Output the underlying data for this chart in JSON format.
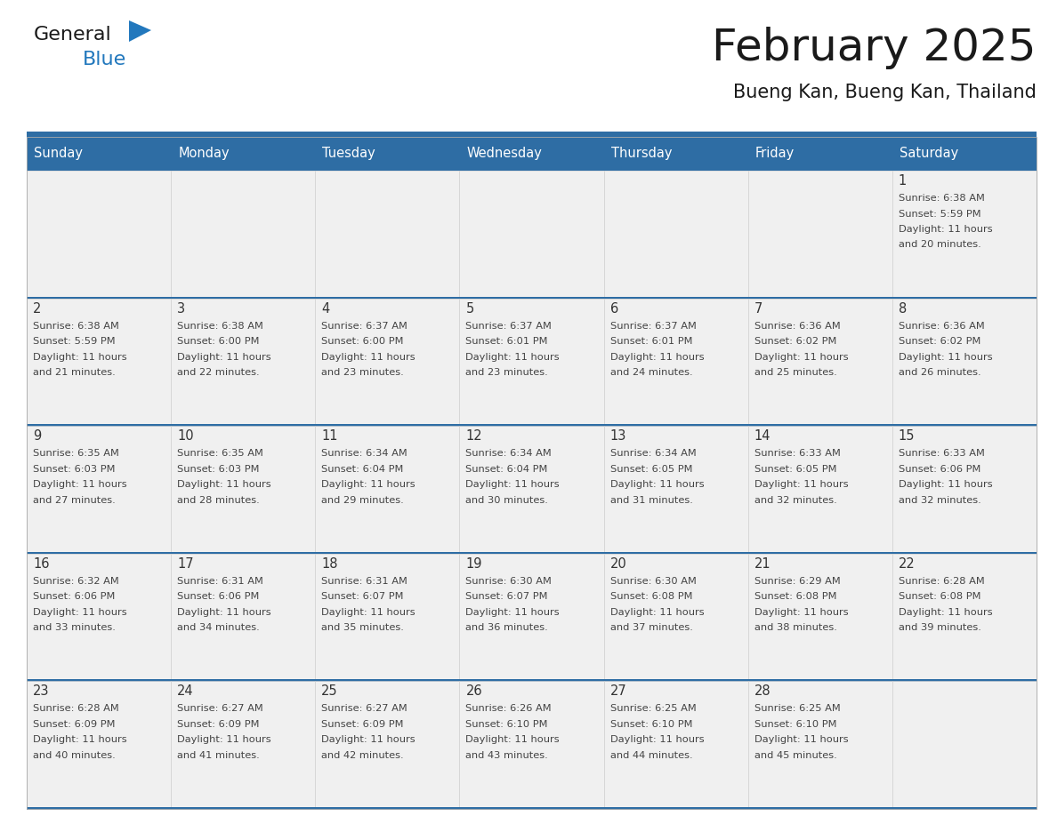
{
  "title": "February 2025",
  "subtitle": "Bueng Kan, Bueng Kan, Thailand",
  "header_bg": "#2E6DA4",
  "header_text_color": "#FFFFFF",
  "cell_bg": "#F0F0F0",
  "separator_color": "#2E6DA4",
  "day_num_color": "#333333",
  "text_color": "#444444",
  "logo_dark_color": "#1A1A1A",
  "logo_blue_color": "#2278BD",
  "days_of_week": [
    "Sunday",
    "Monday",
    "Tuesday",
    "Wednesday",
    "Thursday",
    "Friday",
    "Saturday"
  ],
  "weeks": [
    [
      null,
      null,
      null,
      null,
      null,
      null,
      1
    ],
    [
      2,
      3,
      4,
      5,
      6,
      7,
      8
    ],
    [
      9,
      10,
      11,
      12,
      13,
      14,
      15
    ],
    [
      16,
      17,
      18,
      19,
      20,
      21,
      22
    ],
    [
      23,
      24,
      25,
      26,
      27,
      28,
      null
    ]
  ],
  "cell_data": {
    "1": {
      "sunrise": "6:38 AM",
      "sunset": "5:59 PM",
      "daylight_hours": "11",
      "daylight_mins": "20"
    },
    "2": {
      "sunrise": "6:38 AM",
      "sunset": "5:59 PM",
      "daylight_hours": "11",
      "daylight_mins": "21"
    },
    "3": {
      "sunrise": "6:38 AM",
      "sunset": "6:00 PM",
      "daylight_hours": "11",
      "daylight_mins": "22"
    },
    "4": {
      "sunrise": "6:37 AM",
      "sunset": "6:00 PM",
      "daylight_hours": "11",
      "daylight_mins": "23"
    },
    "5": {
      "sunrise": "6:37 AM",
      "sunset": "6:01 PM",
      "daylight_hours": "11",
      "daylight_mins": "23"
    },
    "6": {
      "sunrise": "6:37 AM",
      "sunset": "6:01 PM",
      "daylight_hours": "11",
      "daylight_mins": "24"
    },
    "7": {
      "sunrise": "6:36 AM",
      "sunset": "6:02 PM",
      "daylight_hours": "11",
      "daylight_mins": "25"
    },
    "8": {
      "sunrise": "6:36 AM",
      "sunset": "6:02 PM",
      "daylight_hours": "11",
      "daylight_mins": "26"
    },
    "9": {
      "sunrise": "6:35 AM",
      "sunset": "6:03 PM",
      "daylight_hours": "11",
      "daylight_mins": "27"
    },
    "10": {
      "sunrise": "6:35 AM",
      "sunset": "6:03 PM",
      "daylight_hours": "11",
      "daylight_mins": "28"
    },
    "11": {
      "sunrise": "6:34 AM",
      "sunset": "6:04 PM",
      "daylight_hours": "11",
      "daylight_mins": "29"
    },
    "12": {
      "sunrise": "6:34 AM",
      "sunset": "6:04 PM",
      "daylight_hours": "11",
      "daylight_mins": "30"
    },
    "13": {
      "sunrise": "6:34 AM",
      "sunset": "6:05 PM",
      "daylight_hours": "11",
      "daylight_mins": "31"
    },
    "14": {
      "sunrise": "6:33 AM",
      "sunset": "6:05 PM",
      "daylight_hours": "11",
      "daylight_mins": "32"
    },
    "15": {
      "sunrise": "6:33 AM",
      "sunset": "6:06 PM",
      "daylight_hours": "11",
      "daylight_mins": "32"
    },
    "16": {
      "sunrise": "6:32 AM",
      "sunset": "6:06 PM",
      "daylight_hours": "11",
      "daylight_mins": "33"
    },
    "17": {
      "sunrise": "6:31 AM",
      "sunset": "6:06 PM",
      "daylight_hours": "11",
      "daylight_mins": "34"
    },
    "18": {
      "sunrise": "6:31 AM",
      "sunset": "6:07 PM",
      "daylight_hours": "11",
      "daylight_mins": "35"
    },
    "19": {
      "sunrise": "6:30 AM",
      "sunset": "6:07 PM",
      "daylight_hours": "11",
      "daylight_mins": "36"
    },
    "20": {
      "sunrise": "6:30 AM",
      "sunset": "6:08 PM",
      "daylight_hours": "11",
      "daylight_mins": "37"
    },
    "21": {
      "sunrise": "6:29 AM",
      "sunset": "6:08 PM",
      "daylight_hours": "11",
      "daylight_mins": "38"
    },
    "22": {
      "sunrise": "6:28 AM",
      "sunset": "6:08 PM",
      "daylight_hours": "11",
      "daylight_mins": "39"
    },
    "23": {
      "sunrise": "6:28 AM",
      "sunset": "6:09 PM",
      "daylight_hours": "11",
      "daylight_mins": "40"
    },
    "24": {
      "sunrise": "6:27 AM",
      "sunset": "6:09 PM",
      "daylight_hours": "11",
      "daylight_mins": "41"
    },
    "25": {
      "sunrise": "6:27 AM",
      "sunset": "6:09 PM",
      "daylight_hours": "11",
      "daylight_mins": "42"
    },
    "26": {
      "sunrise": "6:26 AM",
      "sunset": "6:10 PM",
      "daylight_hours": "11",
      "daylight_mins": "43"
    },
    "27": {
      "sunrise": "6:25 AM",
      "sunset": "6:10 PM",
      "daylight_hours": "11",
      "daylight_mins": "44"
    },
    "28": {
      "sunrise": "6:25 AM",
      "sunset": "6:10 PM",
      "daylight_hours": "11",
      "daylight_mins": "45"
    }
  }
}
